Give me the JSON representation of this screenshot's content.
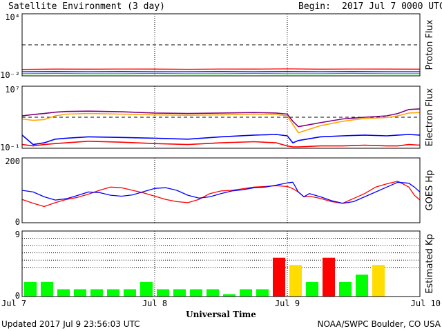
{
  "header": {
    "title": "Satellite Environment (3 day)",
    "begin_label": "Begin:",
    "begin_value": "2017 Jul 7 0000 UTC"
  },
  "footer": {
    "updated": "Updated 2017 Jul  9 23:56:03 UTC",
    "source": "NOAA/SWPC Boulder, CO USA",
    "xaxis_title": "Universal Time"
  },
  "chart_data": [
    {
      "type": "line",
      "ylabel": "Proton Flux",
      "yscale": "log",
      "ylim": [
        0.01,
        10000
      ],
      "ytick_labels": [
        "10⁴",
        "10⁻²"
      ],
      "threshold": 10,
      "x": [
        0,
        6,
        12,
        18,
        24,
        30,
        36,
        42,
        48,
        54,
        60,
        66,
        72
      ],
      "series": [
        {
          "color": "#ff0000",
          "values": [
            0.042,
            0.045,
            0.044,
            0.046,
            0.045,
            0.043,
            0.046,
            0.045,
            0.047,
            0.044,
            0.046,
            0.045,
            0.044
          ]
        },
        {
          "color": "#0000ff",
          "values": [
            0.025,
            0.026,
            0.025,
            0.026,
            0.025,
            0.025,
            0.026,
            0.025,
            0.026,
            0.025,
            0.026,
            0.025,
            0.025
          ]
        },
        {
          "color": "#00cc00",
          "values": [
            0.016,
            0.017,
            0.016,
            0.016,
            0.017,
            0.016,
            0.016,
            0.017,
            0.016,
            0.016,
            0.017,
            0.016,
            0.016
          ]
        }
      ]
    },
    {
      "type": "line",
      "ylabel": "Electron Flux",
      "yscale": "log",
      "ylim": [
        0.1,
        10000000
      ],
      "ytick_labels": [
        "10⁷",
        "10⁻¹"
      ],
      "threshold": 1000,
      "x": [
        0,
        2,
        4,
        6,
        8,
        12,
        18,
        24,
        30,
        36,
        42,
        46,
        48,
        49,
        50,
        54,
        58,
        62,
        66,
        68,
        70,
        72
      ],
      "series": [
        {
          "color": "#800080",
          "values": [
            1500,
            2200,
            3000,
            4500,
            5500,
            6000,
            5000,
            3500,
            3000,
            3500,
            4000,
            3500,
            2500,
            300,
            60,
            200,
            600,
            1000,
            1500,
            3000,
            10000,
            12000
          ]
        },
        {
          "color": "#ffa500",
          "values": [
            600,
            400,
            500,
            1500,
            2500,
            3000,
            2500,
            2000,
            1800,
            2000,
            2500,
            2200,
            1500,
            120,
            10,
            80,
            300,
            700,
            900,
            1500,
            3500,
            4000
          ]
        },
        {
          "color": "#0000ff",
          "values": [
            5,
            0.3,
            0.5,
            1.5,
            2,
            3,
            2.5,
            2,
            1.5,
            3,
            5,
            6,
            4,
            0.5,
            1,
            3,
            4,
            5,
            4,
            5,
            6,
            5
          ]
        },
        {
          "color": "#ff0000",
          "values": [
            0.3,
            0.2,
            0.3,
            0.4,
            0.5,
            0.8,
            0.6,
            0.4,
            0.3,
            0.5,
            0.7,
            0.5,
            0.2,
            0.15,
            0.15,
            0.2,
            0.2,
            0.25,
            0.2,
            0.2,
            0.3,
            0.25
          ]
        }
      ]
    },
    {
      "type": "line",
      "ylabel": "GOES Hp",
      "ylim": [
        0,
        200
      ],
      "ytick_labels": [
        "200",
        "0"
      ],
      "x": [
        0,
        2,
        4,
        6,
        8,
        10,
        12,
        14,
        16,
        18,
        20,
        22,
        24,
        26,
        28,
        30,
        32,
        34,
        36,
        38,
        40,
        42,
        44,
        46,
        48,
        49,
        50,
        51,
        52,
        54,
        56,
        58,
        60,
        62,
        64,
        66,
        68,
        70,
        71,
        72
      ],
      "series": [
        {
          "color": "#ff0000",
          "values": [
            72,
            60,
            50,
            62,
            72,
            78,
            88,
            100,
            110,
            108,
            100,
            92,
            82,
            72,
            65,
            62,
            72,
            90,
            98,
            100,
            105,
            110,
            112,
            114,
            112,
            105,
            95,
            80,
            82,
            75,
            65,
            60,
            75,
            90,
            110,
            120,
            128,
            110,
            85,
            70
          ]
        },
        {
          "color": "#0000ff",
          "values": [
            100,
            95,
            80,
            70,
            74,
            84,
            95,
            93,
            85,
            82,
            86,
            96,
            106,
            108,
            100,
            85,
            76,
            80,
            90,
            98,
            102,
            108,
            110,
            116,
            123,
            125,
            95,
            80,
            90,
            80,
            68,
            60,
            65,
            80,
            95,
            110,
            125,
            122,
            110,
            95
          ]
        }
      ]
    },
    {
      "type": "bar",
      "ylabel": "Estimated Kp",
      "ylim": [
        0,
        9
      ],
      "ytick_labels": [
        "9",
        "0"
      ],
      "gridlines": [
        4,
        5,
        6,
        7,
        8
      ],
      "values": [
        2,
        2,
        1,
        1,
        1,
        1,
        1,
        2,
        1,
        1,
        1,
        1,
        0.33,
        1,
        1,
        5.33,
        4.33,
        2,
        5.33,
        2,
        3,
        4.33,
        0,
        0
      ],
      "colors": [
        "#00ff00",
        "#00ff00",
        "#00ff00",
        "#00ff00",
        "#00ff00",
        "#00ff00",
        "#00ff00",
        "#00ff00",
        "#00ff00",
        "#00ff00",
        "#00ff00",
        "#00ff00",
        "#00ff00",
        "#00ff00",
        "#00ff00",
        "#ff0000",
        "#ffdd00",
        "#00ff00",
        "#ff0000",
        "#00ff00",
        "#00ff00",
        "#ffdd00",
        "#00ff00",
        "#00ff00"
      ]
    }
  ],
  "x_axis": {
    "range_hours": [
      0,
      72
    ],
    "ticks_hours": [
      0,
      24,
      48,
      72
    ],
    "tick_labels": [
      "Jul 7",
      "Jul 8",
      "Jul 9",
      "Jul 10"
    ]
  }
}
